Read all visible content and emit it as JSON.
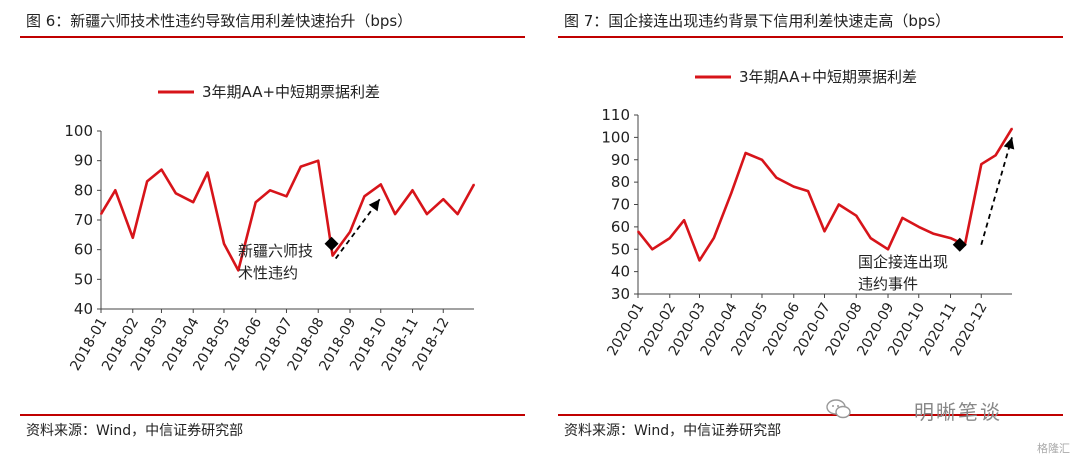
{
  "left": {
    "title": "图 6：新疆六师技术性违约导致信用利差快速抬升（bps）",
    "source": "资料来源：Wind，中信证券研究部",
    "chart_data": {
      "type": "line",
      "series": [
        {
          "name": "3年期AA+中短期票据利差",
          "x": [
            "2018-01-01",
            "2018-01-15",
            "2018-02-01",
            "2018-02-15",
            "2018-03-01",
            "2018-03-15",
            "2018-04-01",
            "2018-04-15",
            "2018-05-01",
            "2018-05-15",
            "2018-06-01",
            "2018-06-15",
            "2018-07-01",
            "2018-07-15",
            "2018-08-01",
            "2018-08-15",
            "2018-09-01",
            "2018-09-15",
            "2018-10-01",
            "2018-10-15",
            "2018-11-01",
            "2018-11-15",
            "2018-12-01",
            "2018-12-15",
            "2018-12-31"
          ],
          "values": [
            72,
            80,
            64,
            83,
            87,
            79,
            76,
            86,
            62,
            53,
            76,
            80,
            78,
            88,
            90,
            58,
            66,
            78,
            82,
            72,
            80,
            72,
            77,
            72,
            82
          ]
        }
      ],
      "xticks": [
        "2018-01",
        "2018-02",
        "2018-03",
        "2018-04",
        "2018-05",
        "2018-06",
        "2018-07",
        "2018-08",
        "2018-09",
        "2018-10",
        "2018-11",
        "2018-12"
      ],
      "yticks": [
        40,
        50,
        60,
        70,
        80,
        90,
        100
      ],
      "ylim": [
        40,
        100
      ],
      "xlim": [
        "2018-01-01",
        "2018-12-31"
      ],
      "legend": "top",
      "annotation": {
        "line1": "新疆六师技",
        "line2": "术性违约",
        "marker_x": "2018-08-14",
        "marker_y": 62
      },
      "arrow": {
        "from": [
          "2018-08-18",
          57
        ],
        "to": [
          "2018-09-30",
          77
        ]
      },
      "color": "#d7141a"
    }
  },
  "right": {
    "title": "图 7：国企接连出现违约背景下信用利差快速走高（bps）",
    "source": "资料来源：Wind，中信证券研究部",
    "chart_data": {
      "type": "line",
      "series": [
        {
          "name": "3年期AA+中短期票据利差",
          "x": [
            "2020-01-01",
            "2020-01-15",
            "2020-02-01",
            "2020-02-15",
            "2020-03-01",
            "2020-03-15",
            "2020-04-01",
            "2020-04-15",
            "2020-05-01",
            "2020-05-15",
            "2020-06-01",
            "2020-06-15",
            "2020-07-01",
            "2020-07-15",
            "2020-08-01",
            "2020-08-15",
            "2020-09-01",
            "2020-09-15",
            "2020-10-01",
            "2020-10-15",
            "2020-11-01",
            "2020-11-15",
            "2020-12-01",
            "2020-12-15",
            "2020-12-31"
          ],
          "values": [
            58,
            50,
            55,
            63,
            45,
            55,
            75,
            93,
            90,
            82,
            78,
            76,
            58,
            70,
            65,
            55,
            50,
            64,
            60,
            57,
            55,
            52,
            88,
            92,
            104
          ],
          "values_note": ""
        }
      ],
      "xticks": [
        "2020-01",
        "2020-02",
        "2020-03",
        "2020-04",
        "2020-05",
        "2020-06",
        "2020-07",
        "2020-08",
        "2020-09",
        "2020-10",
        "2020-11",
        "2020-12"
      ],
      "yticks": [
        30,
        40,
        50,
        60,
        70,
        80,
        90,
        100,
        110
      ],
      "ylim": [
        30,
        110
      ],
      "xlim": [
        "2020-01-01",
        "2020-12-31"
      ],
      "legend": "top",
      "annotation": {
        "line1": "国企接连出现",
        "line2": "违约事件",
        "marker_x": "2020-11-10",
        "marker_y": 52
      },
      "arrow": {
        "from": [
          "2020-12-01",
          52
        ],
        "to": [
          "2020-12-31",
          100
        ]
      },
      "color": "#d7141a"
    }
  },
  "watermark": {
    "text": "明晰笔谈",
    "sub": "格隆汇"
  }
}
